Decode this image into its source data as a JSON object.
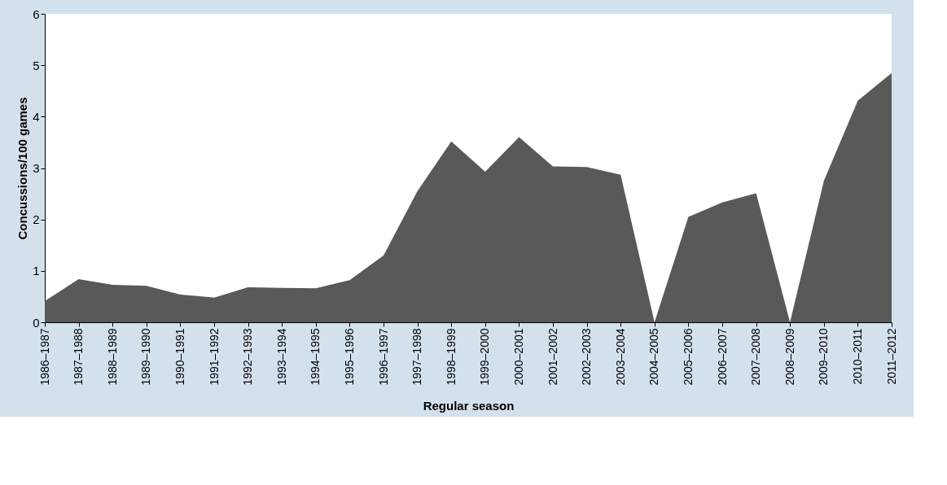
{
  "chart_data": {
    "type": "area",
    "xlabel": "Regular season",
    "ylabel": "Concussions/100 games",
    "categories": [
      "1986–1987",
      "1987–1988",
      "1988–1989",
      "1989–1990",
      "1990–1991",
      "1991–1992",
      "1992–1993",
      "1993–1994",
      "1994–1995",
      "1995–1996",
      "1996–1997",
      "1997–1998",
      "1998–1999",
      "1999–2000",
      "2000–2001",
      "2001–2002",
      "2002–2003",
      "2003–2004",
      "2004–2005",
      "2005–2006",
      "2006–2007",
      "2007–2008",
      "2008–2009",
      "2009–2010",
      "2010–2011",
      "2011–2012"
    ],
    "values": [
      0.41,
      0.84,
      0.73,
      0.71,
      0.54,
      0.48,
      0.68,
      0.67,
      0.66,
      0.82,
      1.3,
      2.55,
      3.52,
      2.93,
      3.6,
      3.03,
      3.02,
      2.87,
      0,
      2.05,
      2.33,
      2.51,
      0,
      2.75,
      4.31,
      4.85
    ],
    "color": "#595959",
    "ylim": [
      0,
      6
    ],
    "yticks": [
      0,
      1,
      2,
      3,
      4,
      5,
      6
    ]
  }
}
